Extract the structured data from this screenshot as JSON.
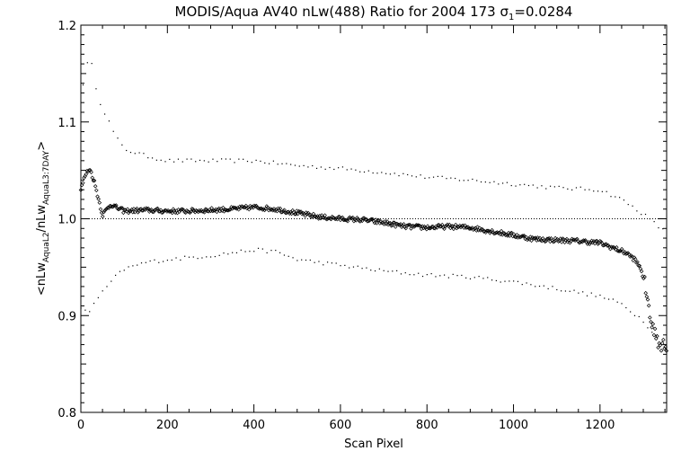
{
  "chart_data": {
    "type": "scatter",
    "title": {
      "prefix": "MODIS/Aqua AV40 nLw(488) Ratio for 2004 173 ",
      "sigma": "σ",
      "sigma_sub": "1",
      "suffix": "=0.0284"
    },
    "xlabel": "Scan Pixel",
    "ylabel": {
      "open": "<nLw",
      "sub1": "AquaL2",
      "mid": "/nLw",
      "sub2": "AquaL3:7DAY",
      "close": ">"
    },
    "xlim": [
      0,
      1354
    ],
    "ylim": [
      0.8,
      1.2
    ],
    "x_ticks": [
      0,
      200,
      400,
      600,
      800,
      1000,
      1200
    ],
    "x_tick_labels": [
      "0",
      "200",
      "400",
      "600",
      "800",
      "1000",
      "1200"
    ],
    "y_ticks": [
      0.8,
      0.9,
      1.0,
      1.1,
      1.2
    ],
    "y_tick_labels": [
      "0.8",
      "0.9",
      "1.0",
      "1.1",
      "1.2"
    ],
    "reference_line": 1.0,
    "series": [
      {
        "style": "diamond-markers",
        "color": "#000000",
        "points": [
          [
            0,
            1.03
          ],
          [
            10,
            1.045
          ],
          [
            20,
            1.052
          ],
          [
            30,
            1.04
          ],
          [
            40,
            1.022
          ],
          [
            50,
            1.004
          ],
          [
            60,
            1.01
          ],
          [
            70,
            1.015
          ],
          [
            80,
            1.012
          ],
          [
            100,
            1.008
          ],
          [
            150,
            1.009
          ],
          [
            200,
            1.008
          ],
          [
            250,
            1.008
          ],
          [
            300,
            1.009
          ],
          [
            350,
            1.01
          ],
          [
            400,
            1.012
          ],
          [
            450,
            1.01
          ],
          [
            500,
            1.006
          ],
          [
            550,
            1.002
          ],
          [
            600,
            1.0
          ],
          [
            650,
            0.999
          ],
          [
            700,
            0.996
          ],
          [
            750,
            0.992
          ],
          [
            800,
            0.991
          ],
          [
            850,
            0.992
          ],
          [
            900,
            0.991
          ],
          [
            950,
            0.987
          ],
          [
            1000,
            0.983
          ],
          [
            1050,
            0.979
          ],
          [
            1100,
            0.978
          ],
          [
            1150,
            0.977
          ],
          [
            1200,
            0.975
          ],
          [
            1230,
            0.97
          ],
          [
            1260,
            0.965
          ],
          [
            1280,
            0.958
          ],
          [
            1295,
            0.948
          ],
          [
            1305,
            0.93
          ],
          [
            1315,
            0.9
          ],
          [
            1325,
            0.885
          ],
          [
            1335,
            0.872
          ],
          [
            1345,
            0.868
          ],
          [
            1354,
            0.866
          ]
        ]
      },
      {
        "style": "dotted-upper-envelope",
        "color": "#000000",
        "points": [
          [
            5,
            1.14
          ],
          [
            20,
            1.17
          ],
          [
            40,
            1.125
          ],
          [
            60,
            1.105
          ],
          [
            80,
            1.085
          ],
          [
            100,
            1.072
          ],
          [
            150,
            1.065
          ],
          [
            200,
            1.06
          ],
          [
            300,
            1.06
          ],
          [
            400,
            1.06
          ],
          [
            500,
            1.055
          ],
          [
            600,
            1.052
          ],
          [
            700,
            1.048
          ],
          [
            800,
            1.043
          ],
          [
            900,
            1.04
          ],
          [
            1000,
            1.036
          ],
          [
            1100,
            1.032
          ],
          [
            1200,
            1.03
          ],
          [
            1250,
            1.02
          ],
          [
            1300,
            1.005
          ],
          [
            1340,
            0.99
          ],
          [
            1354,
            0.985
          ]
        ]
      },
      {
        "style": "dotted-lower-envelope",
        "color": "#000000",
        "points": [
          [
            0,
            0.908
          ],
          [
            20,
            0.905
          ],
          [
            40,
            0.918
          ],
          [
            60,
            0.93
          ],
          [
            80,
            0.94
          ],
          [
            100,
            0.948
          ],
          [
            150,
            0.955
          ],
          [
            200,
            0.958
          ],
          [
            300,
            0.962
          ],
          [
            400,
            0.968
          ],
          [
            450,
            0.966
          ],
          [
            500,
            0.958
          ],
          [
            600,
            0.952
          ],
          [
            700,
            0.946
          ],
          [
            800,
            0.942
          ],
          [
            900,
            0.94
          ],
          [
            1000,
            0.935
          ],
          [
            1100,
            0.928
          ],
          [
            1200,
            0.92
          ],
          [
            1250,
            0.912
          ],
          [
            1300,
            0.895
          ],
          [
            1354,
            0.865
          ]
        ]
      }
    ]
  }
}
